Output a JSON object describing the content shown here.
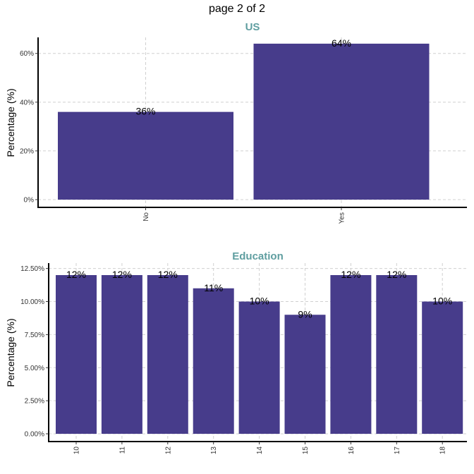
{
  "page": {
    "title": "page 2 of 2"
  },
  "colors": {
    "bar": "#473C8B",
    "panel_title": "#5F9EA0"
  },
  "chart_data": [
    {
      "type": "bar",
      "title": "US",
      "ylabel": "Percentage (%)",
      "xlabel": "",
      "categories": [
        "No",
        "Yes"
      ],
      "values": [
        36,
        64
      ],
      "data_labels": [
        "36%",
        "64%"
      ],
      "ylim": [
        0,
        66
      ],
      "yticks": [
        0,
        20,
        40,
        60
      ],
      "ytick_labels": [
        "0%",
        "20%",
        "40%",
        "60%"
      ],
      "grid": true,
      "legend": "none"
    },
    {
      "type": "bar",
      "title": "Education",
      "ylabel": "Percentage (%)",
      "xlabel": "",
      "categories": [
        "10",
        "11",
        "12",
        "13",
        "14",
        "15",
        "16",
        "17",
        "18"
      ],
      "values": [
        12,
        12,
        12,
        11,
        10,
        9,
        12,
        12,
        10
      ],
      "data_labels": [
        "12%",
        "12%",
        "12%",
        "11%",
        "10%",
        "9%",
        "12%",
        "12%",
        "10%"
      ],
      "ylim": [
        0,
        12.8
      ],
      "yticks": [
        0,
        2.5,
        5,
        7.5,
        10,
        12.5
      ],
      "ytick_labels": [
        "0.00%",
        "2.50%",
        "5.00%",
        "7.50%",
        "10.00%",
        "12.50%"
      ],
      "grid": true,
      "legend": "none"
    }
  ]
}
